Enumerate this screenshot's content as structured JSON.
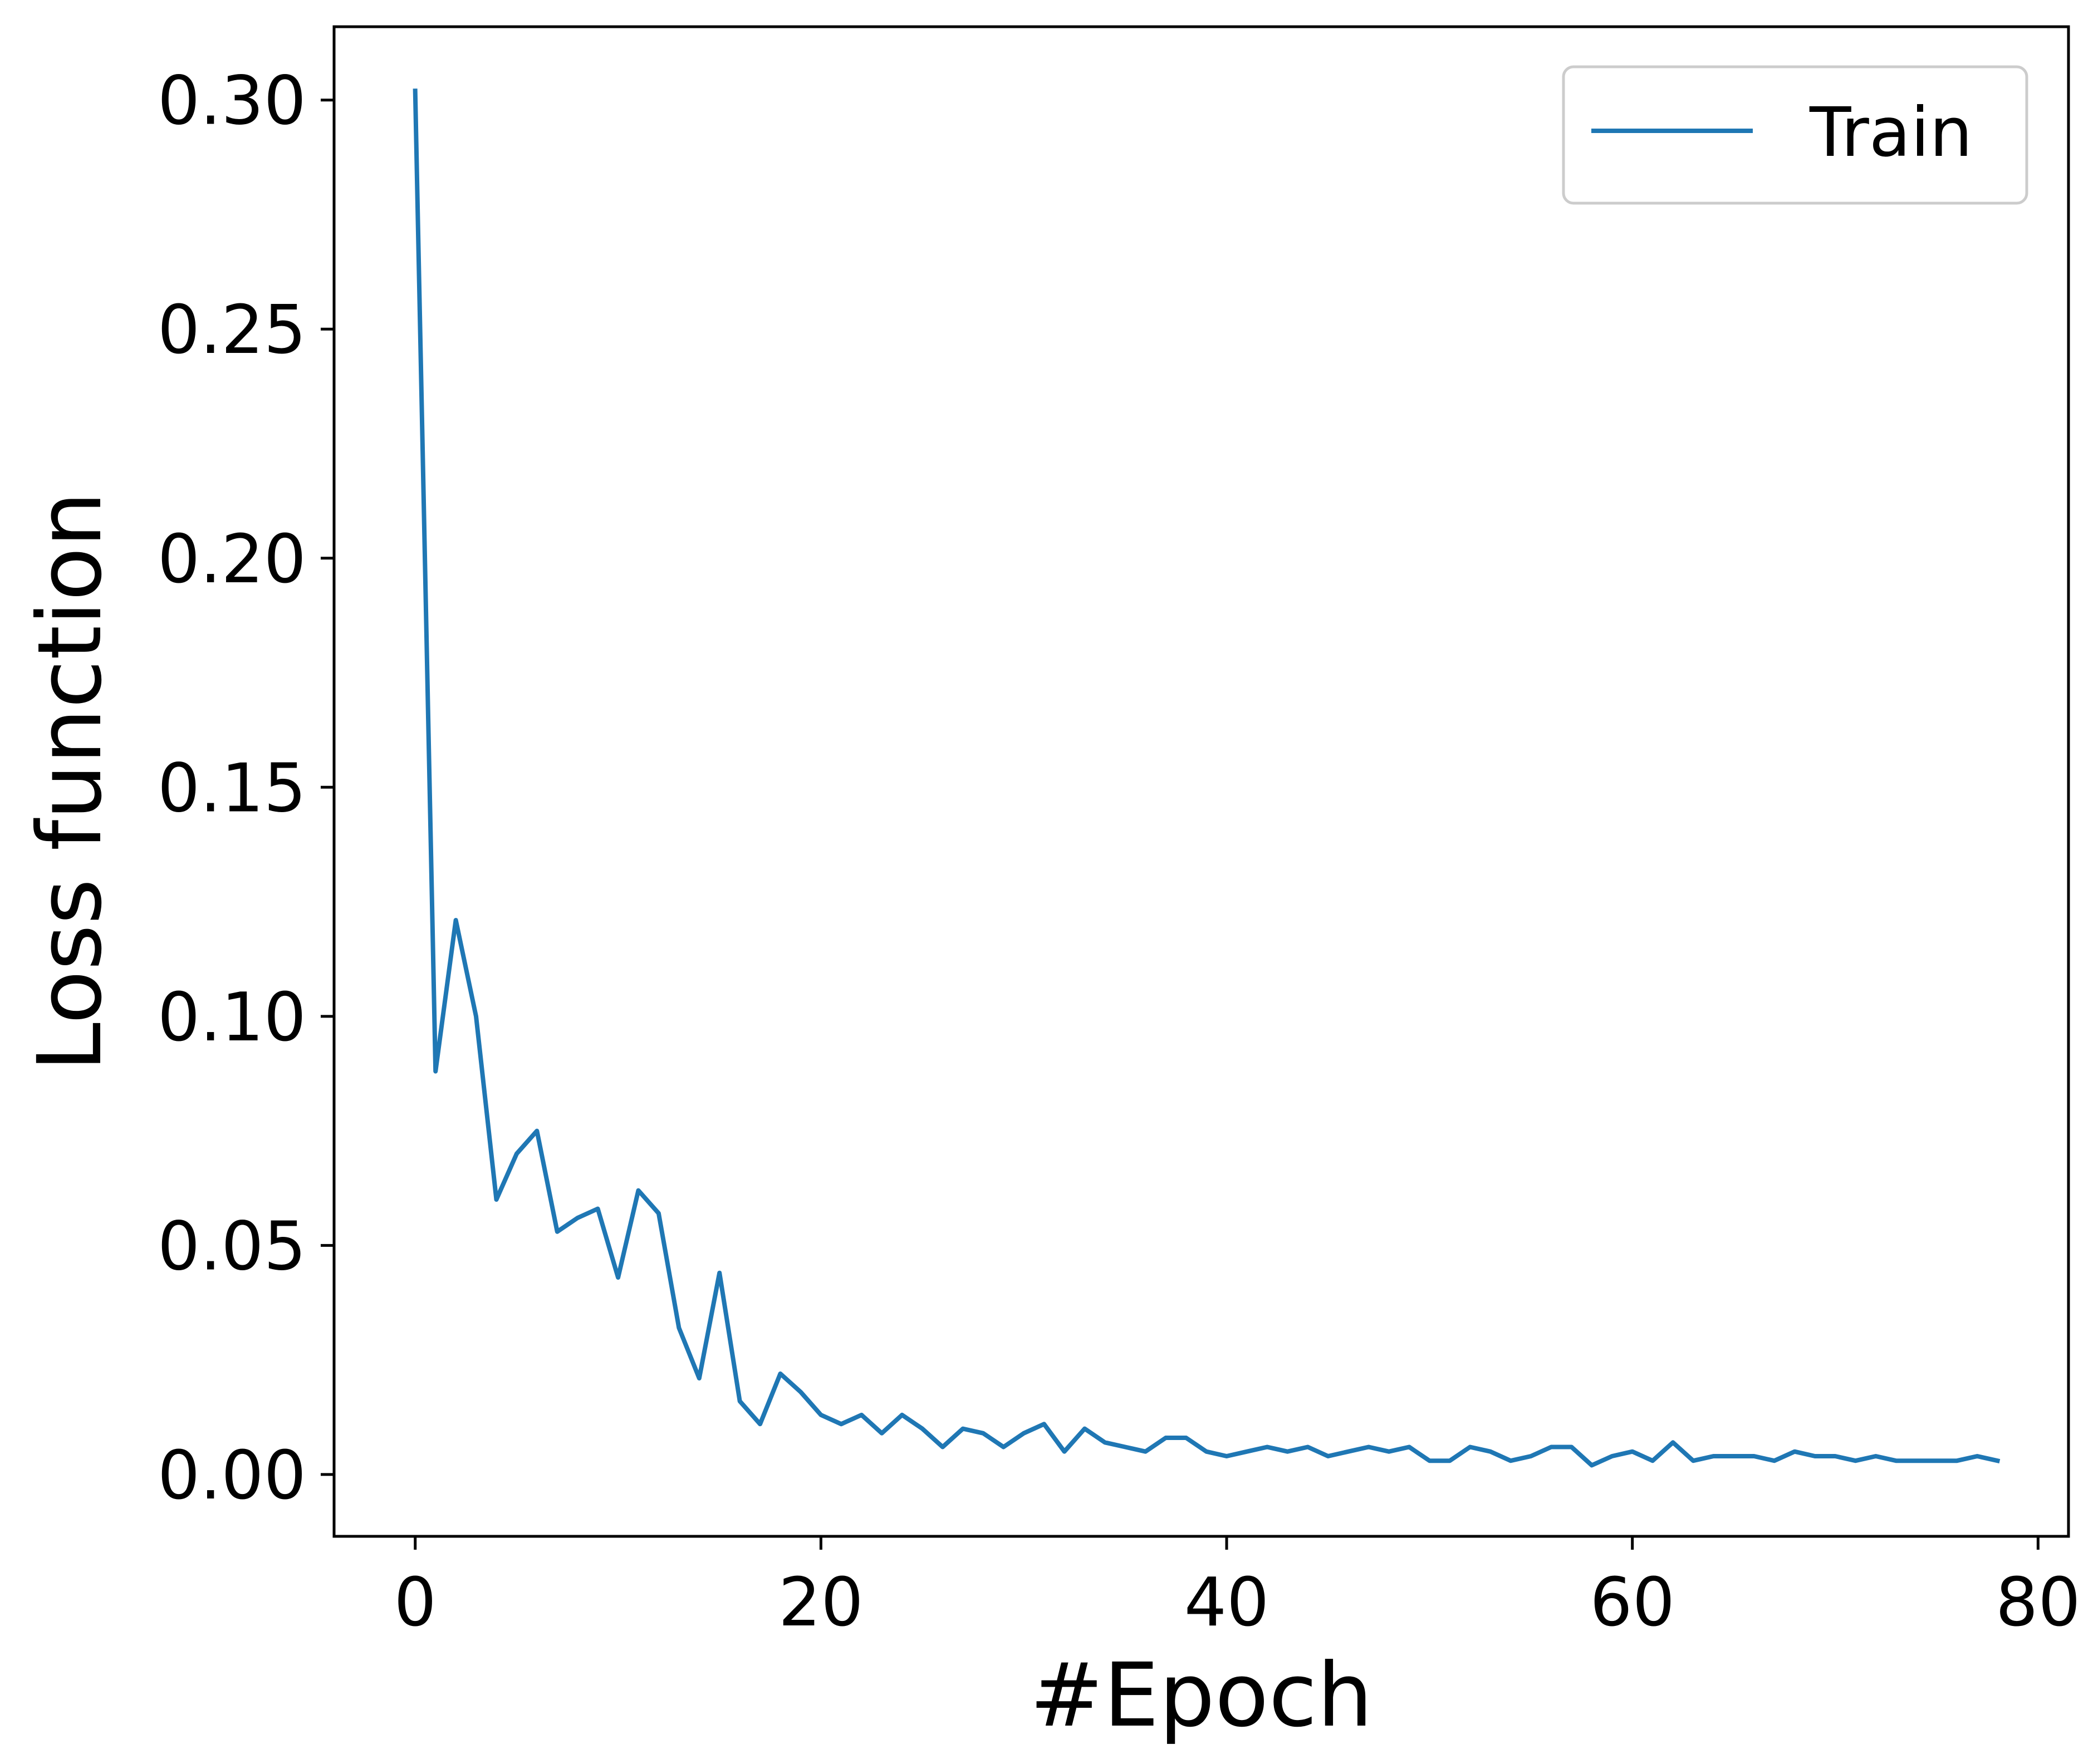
{
  "chart_data": {
    "type": "line",
    "title": "",
    "xlabel": "#Epoch",
    "ylabel": "Loss function",
    "xlim": [
      -4.0,
      81.5
    ],
    "ylim": [
      -0.0135,
      0.316
    ],
    "xticks": [
      0,
      20,
      40,
      60,
      80
    ],
    "xtick_labels": [
      "0",
      "20",
      "40",
      "60",
      "80"
    ],
    "yticks": [
      0.0,
      0.05,
      0.1,
      0.15,
      0.2,
      0.25,
      0.3
    ],
    "ytick_labels": [
      "0.00",
      "0.05",
      "0.10",
      "0.15",
      "0.20",
      "0.25",
      "0.30"
    ],
    "grid": false,
    "legend": {
      "position": "upper right",
      "entries": [
        "Train"
      ]
    },
    "series": [
      {
        "name": "Train",
        "color": "#1f77b4",
        "x": [
          0,
          1,
          2,
          3,
          4,
          5,
          6,
          7,
          8,
          9,
          10,
          11,
          12,
          13,
          14,
          15,
          16,
          17,
          18,
          19,
          20,
          21,
          22,
          23,
          24,
          25,
          26,
          27,
          28,
          29,
          30,
          31,
          32,
          33,
          34,
          35,
          36,
          37,
          38,
          39,
          40,
          41,
          42,
          43,
          44,
          45,
          46,
          47,
          48,
          49,
          50,
          51,
          52,
          53,
          54,
          55,
          56,
          57,
          58,
          59,
          60,
          61,
          62,
          63,
          64,
          65,
          66,
          67,
          68,
          69,
          70,
          71,
          72,
          73,
          74,
          75,
          76,
          77,
          78
        ],
        "values": [
          0.302,
          0.088,
          0.121,
          0.1,
          0.06,
          0.07,
          0.075,
          0.053,
          0.056,
          0.058,
          0.043,
          0.062,
          0.057,
          0.032,
          0.021,
          0.044,
          0.016,
          0.011,
          0.022,
          0.018,
          0.013,
          0.011,
          0.013,
          0.009,
          0.013,
          0.01,
          0.006,
          0.01,
          0.009,
          0.006,
          0.009,
          0.011,
          0.005,
          0.01,
          0.007,
          0.006,
          0.005,
          0.008,
          0.008,
          0.005,
          0.004,
          0.005,
          0.006,
          0.005,
          0.006,
          0.004,
          0.005,
          0.006,
          0.005,
          0.006,
          0.003,
          0.003,
          0.006,
          0.005,
          0.003,
          0.004,
          0.006,
          0.006,
          0.002,
          0.004,
          0.005,
          0.003,
          0.007,
          0.003,
          0.004,
          0.004,
          0.004,
          0.003,
          0.005,
          0.004,
          0.004,
          0.003,
          0.004,
          0.003,
          0.003,
          0.003,
          0.003,
          0.004,
          0.003
        ]
      }
    ]
  }
}
